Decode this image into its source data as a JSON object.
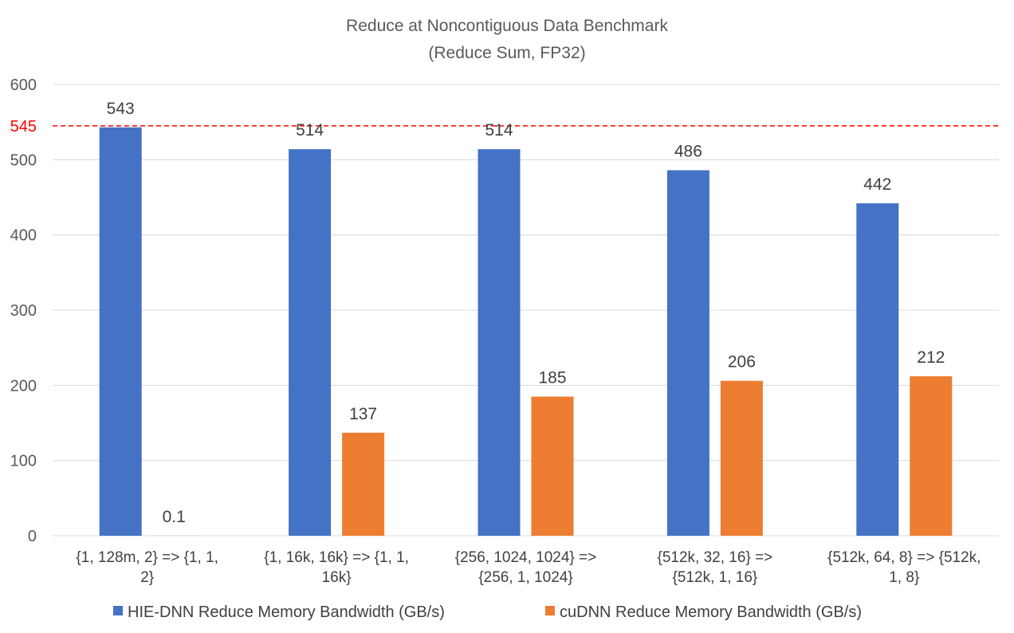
{
  "chart_data": {
    "type": "bar",
    "title": "Reduce at Noncontiguous Data Benchmark",
    "subtitle": "(Reduce Sum, FP32)",
    "categories": [
      [
        "{1, 128m, 2} => {1, 1,",
        "2}"
      ],
      [
        "{1, 16k, 16k} => {1, 1,",
        "16k}"
      ],
      [
        "{256, 1024, 1024} =>",
        "{256, 1, 1024}"
      ],
      [
        "{512k, 32, 16} =>",
        "{512k, 1, 16}"
      ],
      [
        "{512k, 64, 8} => {512k,",
        "1, 8}"
      ]
    ],
    "series": [
      {
        "name": "HIE-DNN Reduce Memory Bandwidth (GB/s)",
        "color": "#4472C4",
        "values": [
          543,
          514,
          514,
          486,
          442
        ],
        "labels": [
          "543",
          "514",
          "514",
          "486",
          "442"
        ]
      },
      {
        "name": "cuDNN Reduce Memory Bandwidth (GB/s)",
        "color": "#ED7D31",
        "values": [
          0.1,
          137,
          185,
          206,
          212
        ],
        "labels": [
          "0.1",
          "137",
          "185",
          "206",
          "212"
        ]
      }
    ],
    "ylim": [
      0,
      600
    ],
    "yticks": [
      0,
      100,
      200,
      300,
      400,
      500,
      600
    ],
    "reference_line": {
      "value": 545,
      "label": "545",
      "color": "#FF0000",
      "style": "dashed"
    },
    "grid": true,
    "legend": "bottom"
  }
}
